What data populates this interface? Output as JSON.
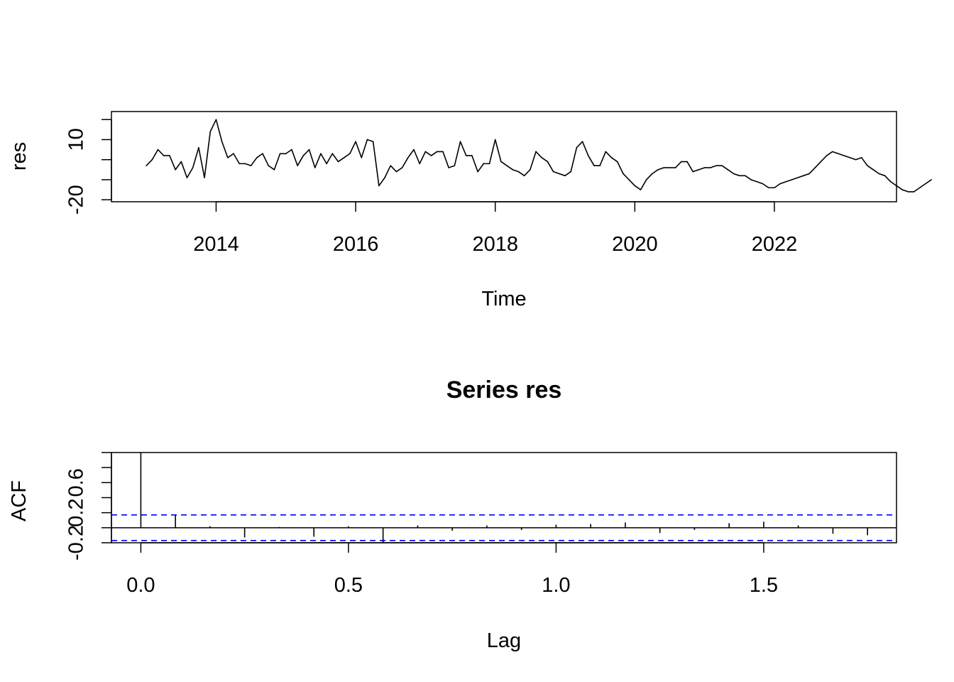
{
  "chart_data": [
    {
      "type": "line",
      "title": "",
      "xlabel": "Time",
      "ylabel": "res",
      "xlim": [
        2012.5,
        2023.75
      ],
      "ylim": [
        -21,
        24
      ],
      "xticks": [
        2014,
        2016,
        2018,
        2020,
        2022
      ],
      "xtick_labels": [
        "2014",
        "2016",
        "2018",
        "2020",
        "2022"
      ],
      "yticks": [
        -20,
        -10,
        0,
        10,
        20
      ],
      "ytick_labels": [
        "-20",
        "",
        "",
        "10",
        ""
      ],
      "x_start": 2013.0,
      "x_step": 0.08333,
      "series": [
        {
          "values": [
            -3,
            0,
            5,
            2,
            2,
            -5,
            -1,
            -9,
            -4,
            6,
            -9,
            14,
            20,
            9,
            1,
            3,
            -2,
            -2,
            -3,
            1,
            3,
            -3,
            -5,
            3,
            3,
            5,
            -3,
            2,
            5,
            -4,
            3,
            -2,
            3,
            -1,
            1,
            3,
            9,
            1,
            10,
            9,
            -13,
            -9,
            -3,
            -6,
            -4,
            1,
            5,
            -2,
            4,
            2,
            4,
            4,
            -4,
            -3,
            9,
            2,
            2,
            -6,
            -2,
            -2,
            10,
            -1,
            -3,
            -5,
            -6,
            -8,
            -5,
            4,
            1,
            -1,
            -6,
            -7,
            -8,
            -6,
            6,
            9,
            2,
            -3,
            -3,
            4,
            1,
            -1,
            -7,
            -10,
            -13,
            -15,
            -10,
            -7,
            -5,
            -4,
            -4,
            -4,
            -1,
            -1,
            -6,
            -5,
            -4,
            -4,
            -3,
            -3,
            -5,
            -7,
            -8,
            -8,
            -10,
            -11,
            -12,
            -14,
            -14,
            -12,
            -11,
            -10,
            -9,
            -8,
            -7,
            -4,
            -1,
            2,
            4,
            3,
            2,
            1,
            0,
            1,
            -3,
            -5,
            -7,
            -8,
            -11,
            -13,
            -15,
            -16,
            -16,
            -14,
            -12,
            -10
          ]
        }
      ]
    },
    {
      "type": "bar",
      "title": "Series  res",
      "xlabel": "Lag",
      "ylabel": "ACF",
      "xlim": [
        -0.0708,
        1.8198
      ],
      "ylim": [
        -0.2,
        1.0
      ],
      "xticks": [
        0.0,
        0.5,
        1.0,
        1.5
      ],
      "xtick_labels": [
        "0.0",
        "0.5",
        "1.0",
        "1.5"
      ],
      "yticks": [
        -0.2,
        0.0,
        0.2,
        0.4,
        0.6,
        0.8,
        1.0
      ],
      "ytick_labels": [
        "-0.2",
        "",
        "0.2",
        "",
        "0.6",
        "",
        ""
      ],
      "lags": [
        0,
        0.0833,
        0.1667,
        0.25,
        0.3333,
        0.4167,
        0.5,
        0.5833,
        0.6667,
        0.75,
        0.8333,
        0.9167,
        1.0,
        1.0833,
        1.1667,
        1.25,
        1.3333,
        1.4167,
        1.5,
        1.5833,
        1.6667,
        1.75
      ],
      "acf": [
        1.0,
        0.17,
        0.02,
        -0.13,
        0.01,
        -0.12,
        0.02,
        -0.2,
        0.03,
        -0.04,
        0.03,
        -0.03,
        0.04,
        0.05,
        0.07,
        -0.07,
        -0.03,
        0.06,
        0.08,
        0.03,
        -0.08,
        -0.1
      ],
      "confidence_bounds": [
        0.17,
        -0.17
      ],
      "confidence_color": "#0000ff"
    }
  ]
}
